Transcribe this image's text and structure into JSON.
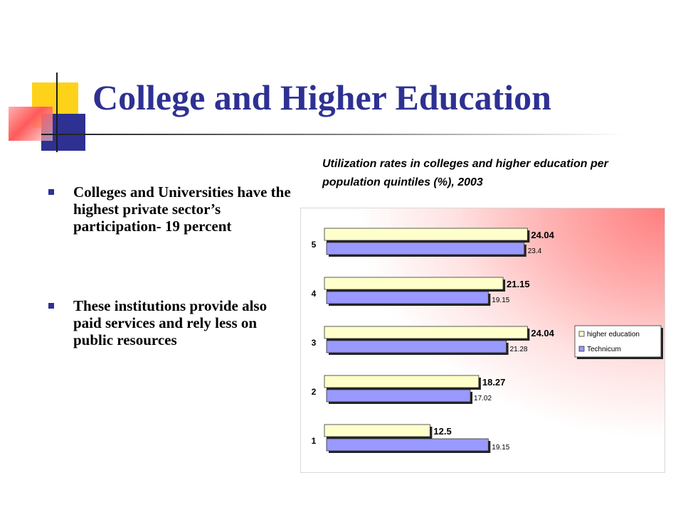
{
  "slide": {
    "title": "College and Higher Education",
    "bullets": [
      "Colleges and Universities have the highest private sector’s participation- 19 percent",
      "These institutions provide also paid services and rely less on public resources"
    ]
  },
  "chart_data": {
    "type": "bar",
    "orientation": "horizontal",
    "title": "Utilization rates in colleges and higher education per population quintiles (%), 2003",
    "categories": [
      "5",
      "4",
      "3",
      "2",
      "1"
    ],
    "series": [
      {
        "name": "higher education",
        "values": [
          24.04,
          21.15,
          24.04,
          18.27,
          12.5
        ],
        "color": "#ffffcc"
      },
      {
        "name": "Technicum",
        "values": [
          23.4,
          19.15,
          21.28,
          17.02,
          19.15
        ],
        "color": "#9999ff"
      }
    ],
    "data_labels": [
      [
        "24.04",
        "21.15",
        "24.04",
        "18.27",
        "12.5"
      ],
      [
        "23.4",
        "19.15",
        "21.28",
        "17.02",
        "19.15"
      ]
    ],
    "xlim": [
      0,
      26
    ],
    "grid": false,
    "legend_position": "right",
    "bar_style": "3d"
  },
  "colors": {
    "title": "#2e3192",
    "bullet": "#2e3192",
    "deco_yellow": "#ffd21a",
    "deco_blue": "#2e3192",
    "deco_red": "#ff5a5a"
  }
}
